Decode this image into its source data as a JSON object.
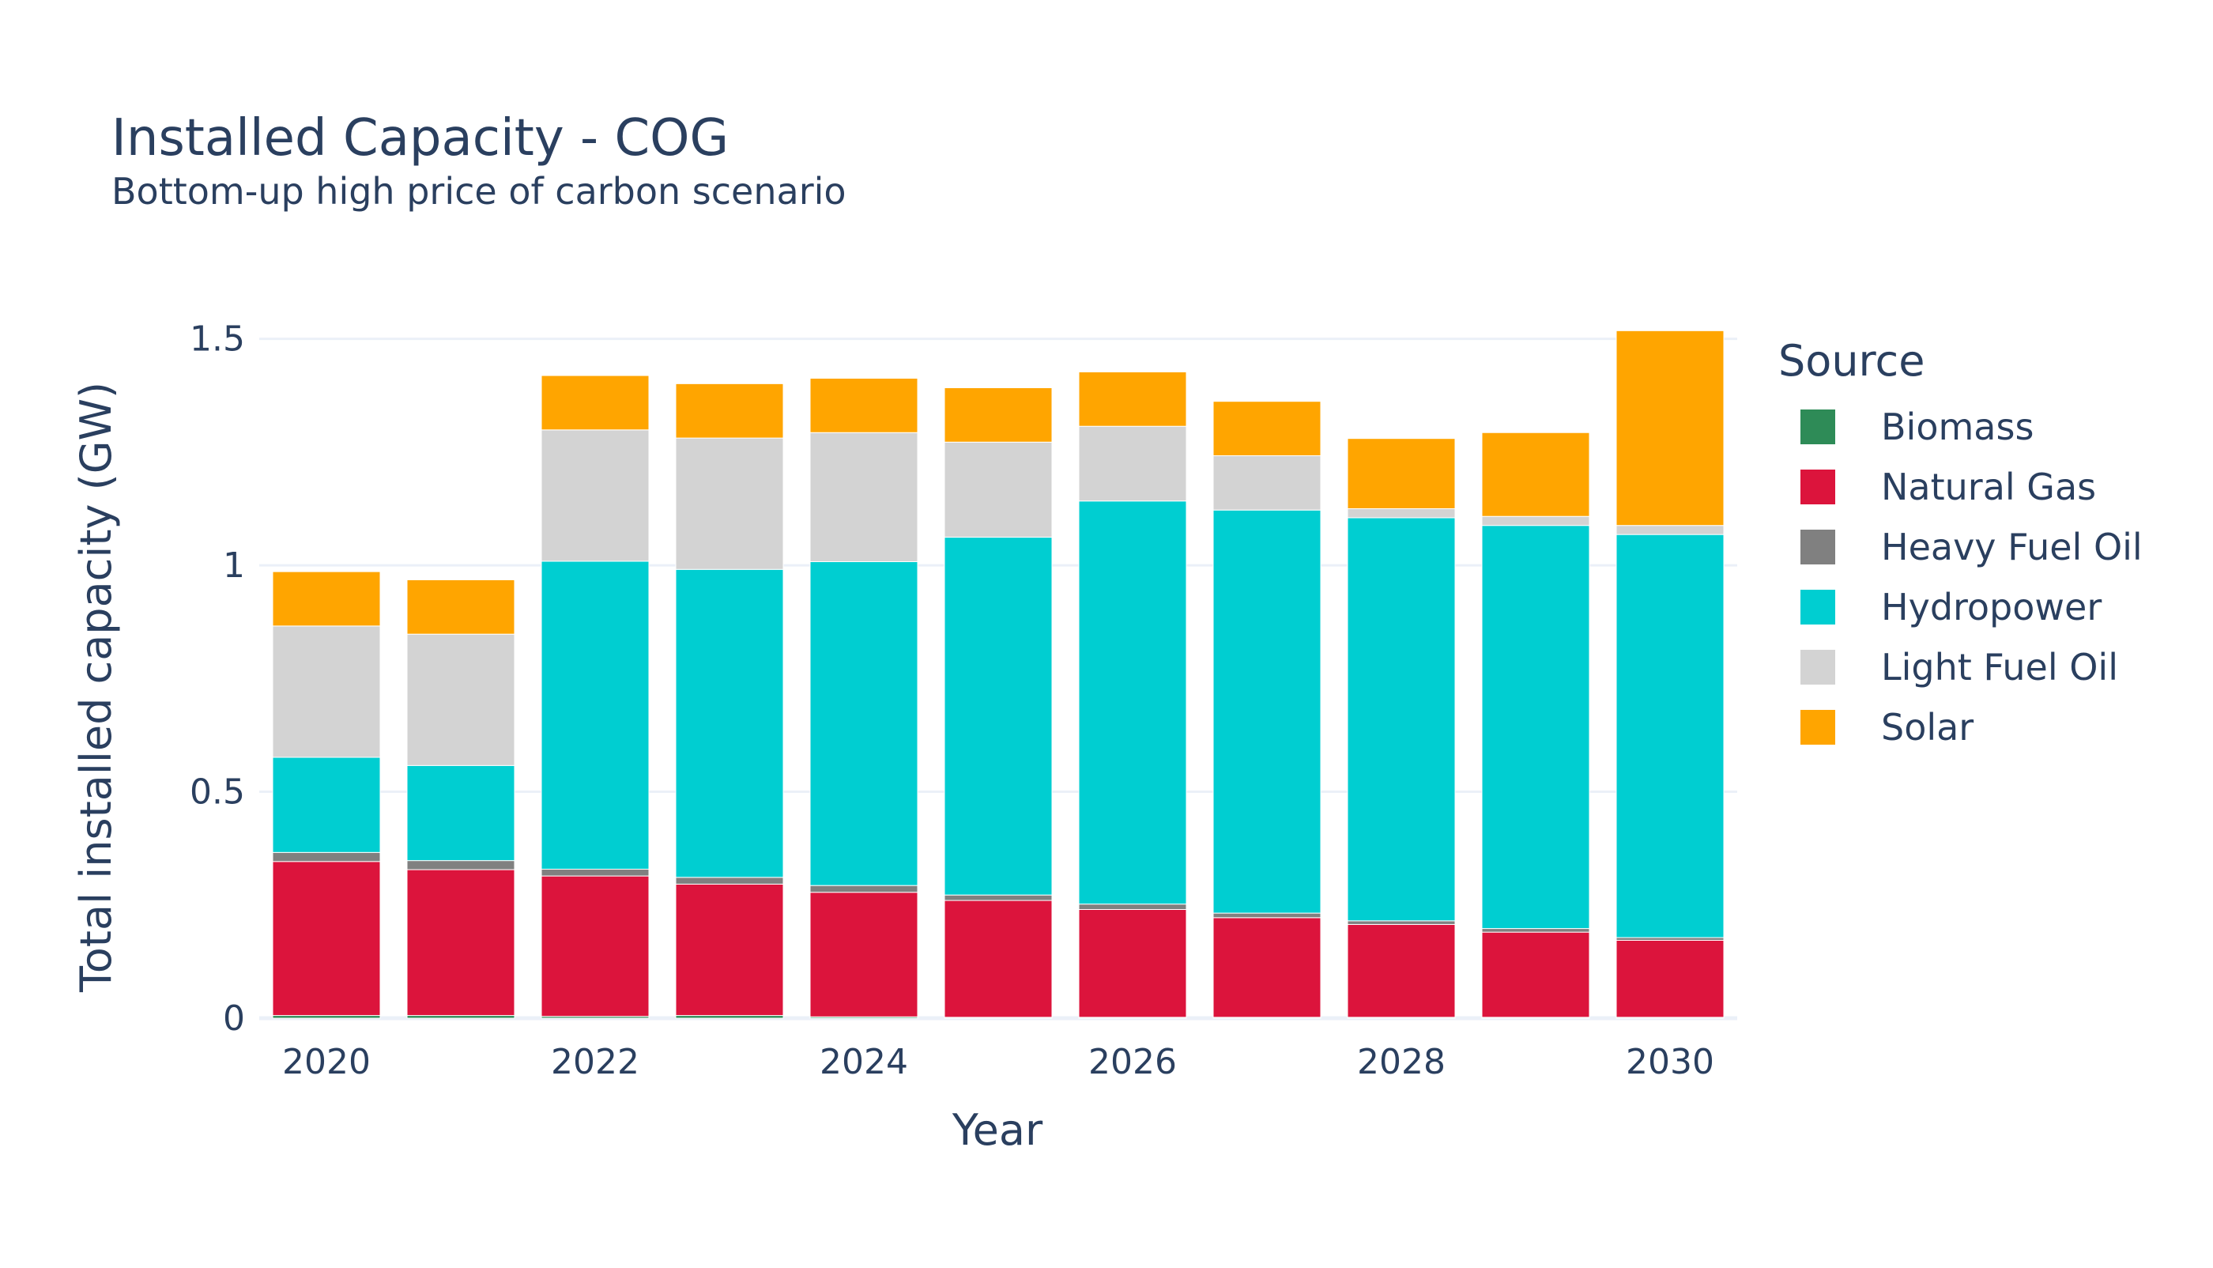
{
  "chart_data": {
    "type": "bar",
    "stacked": true,
    "title": "Installed Capacity - COG",
    "subtitle": "Bottom-up high price of carbon scenario",
    "xlabel": "Year",
    "ylabel": "Total installed capacity (GW)",
    "ylim": [
      0,
      1.55
    ],
    "yticks": [
      0,
      0.5,
      1,
      1.5
    ],
    "ytick_labels": [
      "0",
      "0.5",
      "1",
      "1.5"
    ],
    "xticks": [
      2020,
      2022,
      2024,
      2026,
      2028,
      2030
    ],
    "xtick_labels": [
      "2020",
      "2022",
      "2024",
      "2026",
      "2028",
      "2030"
    ],
    "grid": true,
    "legend_position": "right",
    "legend_title": "Source",
    "categories": [
      2020,
      2021,
      2022,
      2023,
      2024,
      2025,
      2026,
      2027,
      2028,
      2029,
      2030
    ],
    "series": [
      {
        "name": "Biomass",
        "color": "#2e8b57",
        "values": [
          0.006,
          0.006,
          0.004,
          0.006,
          0.003,
          0.002,
          0.002,
          0.002,
          0.002,
          0.002,
          0.002
        ]
      },
      {
        "name": "Natural Gas",
        "color": "#dc143c",
        "values": [
          0.34,
          0.322,
          0.31,
          0.29,
          0.275,
          0.258,
          0.238,
          0.22,
          0.205,
          0.188,
          0.17
        ]
      },
      {
        "name": "Heavy Fuel Oil",
        "color": "#808080",
        "values": [
          0.02,
          0.02,
          0.015,
          0.015,
          0.015,
          0.012,
          0.012,
          0.01,
          0.008,
          0.008,
          0.006
        ]
      },
      {
        "name": "Hydropower",
        "color": "#00ced1",
        "values": [
          0.21,
          0.21,
          0.68,
          0.68,
          0.715,
          0.79,
          0.89,
          0.89,
          0.89,
          0.89,
          0.89
        ]
      },
      {
        "name": "Light Fuel Oil",
        "color": "#d3d3d3",
        "values": [
          0.29,
          0.29,
          0.29,
          0.29,
          0.285,
          0.21,
          0.165,
          0.12,
          0.02,
          0.02,
          0.02
        ]
      },
      {
        "name": "Solar",
        "color": "#ffa500",
        "values": [
          0.12,
          0.12,
          0.12,
          0.12,
          0.12,
          0.12,
          0.12,
          0.12,
          0.155,
          0.185,
          0.43
        ]
      }
    ]
  }
}
